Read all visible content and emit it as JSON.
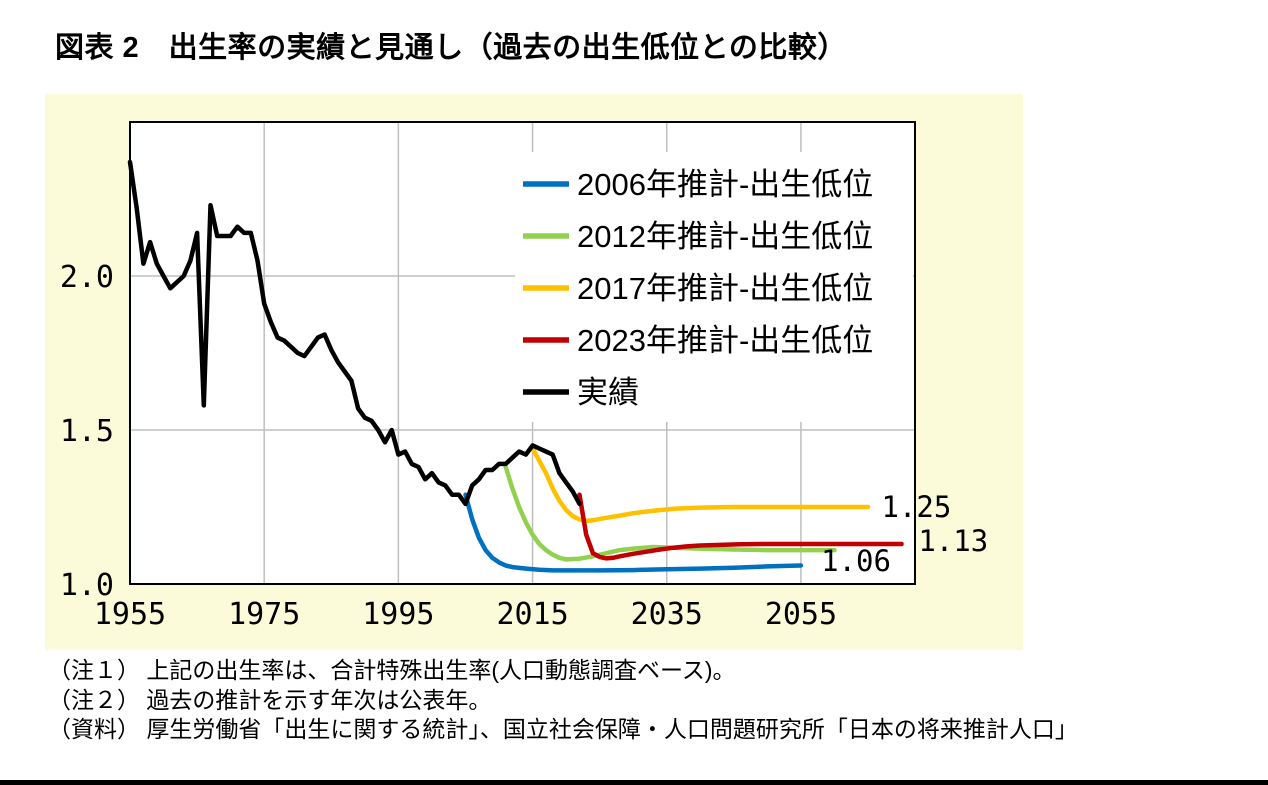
{
  "page": {
    "title": "図表 2　出生率の実績と見通し（過去の出生低位との比較）",
    "notes": [
      "（注１） 上記の出生率は、合計特殊出生率(人口動態調査ベース)。",
      "（注２） 過去の推計を示す年次は公表年。",
      "（資料） 厚生労働省「出生に関する統計」、国立社会保障・人口問題研究所「日本の将来推計人口」"
    ]
  },
  "colors": {
    "chart_bg": "#FBFBD9",
    "plot_bg": "#FFFFFF",
    "grid": "#BFBFBF",
    "axis": "#000000"
  },
  "chart_data": {
    "type": "line",
    "title": "出生率の実績と見通し（過去の出生低位との比較）",
    "xlabel": "",
    "ylabel": "",
    "xlim": [
      1955,
      2072
    ],
    "ylim": [
      1.0,
      2.5
    ],
    "xticks": [
      1955,
      1975,
      1995,
      2015,
      2035,
      2055
    ],
    "yticks": [
      1.0,
      1.5,
      2.0
    ],
    "grid": true,
    "legend_position": "upper-right-inside",
    "series": [
      {
        "name": "2006年推計-出生低位",
        "color": "#0070C0",
        "points": [
          [
            2005,
            1.29
          ],
          [
            2006,
            1.21
          ],
          [
            2007,
            1.15
          ],
          [
            2008,
            1.11
          ],
          [
            2009,
            1.085
          ],
          [
            2010,
            1.07
          ],
          [
            2011,
            1.06
          ],
          [
            2012,
            1.055
          ],
          [
            2014,
            1.05
          ],
          [
            2016,
            1.046
          ],
          [
            2018,
            1.044
          ],
          [
            2020,
            1.044
          ],
          [
            2025,
            1.044
          ],
          [
            2030,
            1.045
          ],
          [
            2035,
            1.048
          ],
          [
            2040,
            1.05
          ],
          [
            2045,
            1.053
          ],
          [
            2050,
            1.057
          ],
          [
            2055,
            1.06
          ]
        ]
      },
      {
        "name": "2012年推計-出生低位",
        "color": "#92D050",
        "points": [
          [
            2011,
            1.38
          ],
          [
            2012,
            1.31
          ],
          [
            2013,
            1.25
          ],
          [
            2014,
            1.2
          ],
          [
            2015,
            1.16
          ],
          [
            2016,
            1.13
          ],
          [
            2017,
            1.11
          ],
          [
            2018,
            1.095
          ],
          [
            2019,
            1.085
          ],
          [
            2020,
            1.08
          ],
          [
            2022,
            1.082
          ],
          [
            2024,
            1.09
          ],
          [
            2026,
            1.1
          ],
          [
            2028,
            1.11
          ],
          [
            2030,
            1.115
          ],
          [
            2033,
            1.12
          ],
          [
            2036,
            1.118
          ],
          [
            2040,
            1.115
          ],
          [
            2045,
            1.112
          ],
          [
            2050,
            1.11
          ],
          [
            2055,
            1.11
          ],
          [
            2060,
            1.11
          ]
        ]
      },
      {
        "name": "2017年推計-出生低位",
        "color": "#FFC000",
        "points": [
          [
            2015,
            1.44
          ],
          [
            2016,
            1.4
          ],
          [
            2017,
            1.36
          ],
          [
            2018,
            1.31
          ],
          [
            2019,
            1.27
          ],
          [
            2020,
            1.24
          ],
          [
            2021,
            1.22
          ],
          [
            2022,
            1.21
          ],
          [
            2023,
            1.205
          ],
          [
            2024,
            1.207
          ],
          [
            2026,
            1.215
          ],
          [
            2028,
            1.222
          ],
          [
            2030,
            1.23
          ],
          [
            2033,
            1.238
          ],
          [
            2036,
            1.244
          ],
          [
            2040,
            1.248
          ],
          [
            2045,
            1.25
          ],
          [
            2050,
            1.25
          ],
          [
            2055,
            1.25
          ],
          [
            2060,
            1.25
          ],
          [
            2065,
            1.25
          ]
        ]
      },
      {
        "name": "2023年推計-出生低位",
        "color": "#C00000",
        "points": [
          [
            2022,
            1.29
          ],
          [
            2023,
            1.16
          ],
          [
            2024,
            1.1
          ],
          [
            2025,
            1.088
          ],
          [
            2026,
            1.083
          ],
          [
            2027,
            1.085
          ],
          [
            2028,
            1.09
          ],
          [
            2030,
            1.098
          ],
          [
            2032,
            1.105
          ],
          [
            2034,
            1.112
          ],
          [
            2036,
            1.118
          ],
          [
            2038,
            1.122
          ],
          [
            2040,
            1.125
          ],
          [
            2043,
            1.127
          ],
          [
            2046,
            1.129
          ],
          [
            2050,
            1.13
          ],
          [
            2055,
            1.13
          ],
          [
            2060,
            1.13
          ],
          [
            2065,
            1.13
          ],
          [
            2070,
            1.13
          ]
        ]
      },
      {
        "name": "実績",
        "color": "#000000",
        "points": [
          [
            1955,
            2.37
          ],
          [
            1956,
            2.22
          ],
          [
            1957,
            2.04
          ],
          [
            1958,
            2.11
          ],
          [
            1959,
            2.04
          ],
          [
            1960,
            2.0
          ],
          [
            1961,
            1.96
          ],
          [
            1962,
            1.98
          ],
          [
            1963,
            2.0
          ],
          [
            1964,
            2.05
          ],
          [
            1965,
            2.14
          ],
          [
            1966,
            1.58
          ],
          [
            1967,
            2.23
          ],
          [
            1968,
            2.13
          ],
          [
            1969,
            2.13
          ],
          [
            1970,
            2.13
          ],
          [
            1971,
            2.16
          ],
          [
            1972,
            2.14
          ],
          [
            1973,
            2.14
          ],
          [
            1974,
            2.05
          ],
          [
            1975,
            1.91
          ],
          [
            1976,
            1.85
          ],
          [
            1977,
            1.8
          ],
          [
            1978,
            1.79
          ],
          [
            1979,
            1.77
          ],
          [
            1980,
            1.75
          ],
          [
            1981,
            1.74
          ],
          [
            1982,
            1.77
          ],
          [
            1983,
            1.8
          ],
          [
            1984,
            1.81
          ],
          [
            1985,
            1.76
          ],
          [
            1986,
            1.72
          ],
          [
            1987,
            1.69
          ],
          [
            1988,
            1.66
          ],
          [
            1989,
            1.57
          ],
          [
            1990,
            1.54
          ],
          [
            1991,
            1.53
          ],
          [
            1992,
            1.5
          ],
          [
            1993,
            1.46
          ],
          [
            1994,
            1.5
          ],
          [
            1995,
            1.42
          ],
          [
            1996,
            1.43
          ],
          [
            1997,
            1.39
          ],
          [
            1998,
            1.38
          ],
          [
            1999,
            1.34
          ],
          [
            2000,
            1.36
          ],
          [
            2001,
            1.33
          ],
          [
            2002,
            1.32
          ],
          [
            2003,
            1.29
          ],
          [
            2004,
            1.29
          ],
          [
            2005,
            1.26
          ],
          [
            2006,
            1.32
          ],
          [
            2007,
            1.34
          ],
          [
            2008,
            1.37
          ],
          [
            2009,
            1.37
          ],
          [
            2010,
            1.39
          ],
          [
            2011,
            1.39
          ],
          [
            2012,
            1.41
          ],
          [
            2013,
            1.43
          ],
          [
            2014,
            1.42
          ],
          [
            2015,
            1.45
          ],
          [
            2016,
            1.44
          ],
          [
            2017,
            1.43
          ],
          [
            2018,
            1.42
          ],
          [
            2019,
            1.36
          ],
          [
            2020,
            1.33
          ],
          [
            2021,
            1.3
          ],
          [
            2022,
            1.26
          ]
        ]
      }
    ],
    "end_labels": [
      {
        "text": "1.25",
        "year": 2067,
        "value": 1.25
      },
      {
        "text": "1.13",
        "year": 2072.5,
        "value": 1.14
      },
      {
        "text": "1.06",
        "year": 2058,
        "value": 1.075
      }
    ]
  }
}
